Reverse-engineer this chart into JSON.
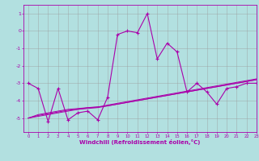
{
  "x_values": [
    0,
    1,
    2,
    3,
    4,
    5,
    6,
    7,
    8,
    9,
    10,
    11,
    12,
    13,
    14,
    15,
    16,
    17,
    18,
    19,
    20,
    21,
    22,
    23
  ],
  "main_line": [
    -3.0,
    -3.3,
    -5.2,
    -3.3,
    -5.1,
    -4.7,
    -4.6,
    -5.1,
    -3.8,
    -0.2,
    0.0,
    -0.1,
    1.0,
    -1.6,
    -0.7,
    -1.2,
    -3.5,
    -3.0,
    -3.5,
    -4.2,
    -3.3,
    -3.2,
    -3.0,
    -3.0
  ],
  "line1": [
    -5.0,
    -4.9,
    -4.8,
    -4.7,
    -4.6,
    -4.5,
    -4.4,
    -4.35,
    -4.3,
    -4.2,
    -4.1,
    -4.0,
    -3.9,
    -3.8,
    -3.7,
    -3.6,
    -3.5,
    -3.4,
    -3.3,
    -3.2,
    -3.1,
    -3.0,
    -2.9,
    -2.8
  ],
  "line2": [
    -5.0,
    -4.85,
    -4.75,
    -4.65,
    -4.55,
    -4.5,
    -4.45,
    -4.4,
    -4.3,
    -4.2,
    -4.1,
    -4.0,
    -3.9,
    -3.8,
    -3.7,
    -3.6,
    -3.5,
    -3.4,
    -3.3,
    -3.2,
    -3.1,
    -3.0,
    -2.9,
    -2.8
  ],
  "line3": [
    -5.0,
    -4.8,
    -4.7,
    -4.6,
    -4.5,
    -4.45,
    -4.4,
    -4.38,
    -4.25,
    -4.15,
    -4.05,
    -3.95,
    -3.85,
    -3.75,
    -3.65,
    -3.55,
    -3.45,
    -3.35,
    -3.25,
    -3.15,
    -3.05,
    -2.95,
    -2.85,
    -2.75
  ],
  "xlim": [
    -0.5,
    23
  ],
  "ylim": [
    -5.8,
    1.5
  ],
  "yticks": [
    1,
    0,
    -1,
    -2,
    -3,
    -4,
    -5
  ],
  "xticks": [
    0,
    1,
    2,
    3,
    4,
    5,
    6,
    7,
    8,
    9,
    10,
    11,
    12,
    13,
    14,
    15,
    16,
    17,
    18,
    19,
    20,
    21,
    22,
    23
  ],
  "xlabel": "Windchill (Refroidissement éolien,°C)",
  "line_color": "#aa00aa",
  "bg_color": "#b2e0e0",
  "grid_color": "#999999",
  "spine_color": "#aa00aa"
}
